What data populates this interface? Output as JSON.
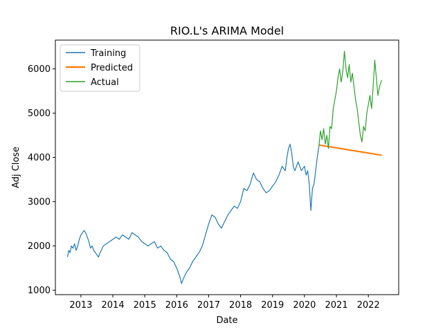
{
  "chart_data": {
    "type": "line",
    "title": "RIO.L's ARIMA Model",
    "xlabel": "Date",
    "ylabel": "Adj Close",
    "xlim": [
      2012.2,
      2022.95
    ],
    "ylim": [
      900,
      6650
    ],
    "xticks": [
      2013,
      2014,
      2015,
      2016,
      2017,
      2018,
      2019,
      2020,
      2021,
      2022
    ],
    "yticks": [
      1000,
      2000,
      3000,
      4000,
      5000,
      6000
    ],
    "grid": false,
    "legend": "top-left",
    "series": [
      {
        "name": "Training",
        "color": "#1f77b4",
        "x": [
          2012.58,
          2012.62,
          2012.66,
          2012.7,
          2012.75,
          2012.8,
          2012.85,
          2012.9,
          2012.95,
          2013.0,
          2013.05,
          2013.1,
          2013.15,
          2013.2,
          2013.25,
          2013.3,
          2013.35,
          2013.4,
          2013.45,
          2013.5,
          2013.55,
          2013.6,
          2013.7,
          2013.8,
          2013.9,
          2014.0,
          2014.1,
          2014.2,
          2014.3,
          2014.4,
          2014.5,
          2014.6,
          2014.7,
          2014.8,
          2014.9,
          2015.0,
          2015.1,
          2015.2,
          2015.3,
          2015.4,
          2015.5,
          2015.6,
          2015.7,
          2015.8,
          2015.9,
          2016.0,
          2016.05,
          2016.1,
          2016.15,
          2016.2,
          2016.3,
          2016.4,
          2016.5,
          2016.6,
          2016.7,
          2016.8,
          2016.9,
          2017.0,
          2017.1,
          2017.2,
          2017.3,
          2017.4,
          2017.5,
          2017.6,
          2017.7,
          2017.8,
          2017.9,
          2018.0,
          2018.1,
          2018.2,
          2018.3,
          2018.4,
          2018.5,
          2018.6,
          2018.7,
          2018.8,
          2018.9,
          2019.0,
          2019.1,
          2019.2,
          2019.3,
          2019.4,
          2019.45,
          2019.5,
          2019.55,
          2019.6,
          2019.65,
          2019.7,
          2019.8,
          2019.9,
          2020.0,
          2020.05,
          2020.1,
          2020.15,
          2020.2,
          2020.25,
          2020.3,
          2020.35,
          2020.4,
          2020.45
        ],
        "values": [
          1750,
          1900,
          1850,
          2000,
          1950,
          2050,
          1900,
          2000,
          2150,
          2250,
          2300,
          2350,
          2300,
          2200,
          2100,
          1950,
          2000,
          1900,
          1850,
          1800,
          1750,
          1850,
          2000,
          2050,
          2100,
          2150,
          2200,
          2150,
          2250,
          2200,
          2150,
          2300,
          2250,
          2200,
          2100,
          2050,
          2000,
          2050,
          2100,
          1950,
          2000,
          1900,
          1850,
          1700,
          1650,
          1500,
          1400,
          1300,
          1150,
          1250,
          1400,
          1500,
          1650,
          1750,
          1850,
          2000,
          2250,
          2500,
          2700,
          2650,
          2500,
          2400,
          2550,
          2700,
          2800,
          2900,
          2850,
          3000,
          3300,
          3250,
          3400,
          3650,
          3500,
          3450,
          3300,
          3200,
          3250,
          3350,
          3450,
          3600,
          3800,
          3700,
          4000,
          4200,
          4300,
          4100,
          3800,
          3700,
          3900,
          3700,
          3800,
          3600,
          3700,
          3400,
          2800,
          3300,
          3400,
          3700,
          4000,
          4250
        ]
      },
      {
        "name": "Predicted",
        "color": "#ff7f0e",
        "x": [
          2020.45,
          2022.42
        ],
        "values": [
          4280,
          4050
        ]
      },
      {
        "name": "Actual",
        "color": "#2ca02c",
        "x": [
          2020.45,
          2020.5,
          2020.55,
          2020.6,
          2020.65,
          2020.7,
          2020.75,
          2020.8,
          2020.85,
          2020.9,
          2020.95,
          2021.0,
          2021.05,
          2021.1,
          2021.15,
          2021.2,
          2021.25,
          2021.3,
          2021.35,
          2021.4,
          2021.45,
          2021.5,
          2021.55,
          2021.6,
          2021.65,
          2021.7,
          2021.75,
          2021.8,
          2021.85,
          2021.9,
          2021.95,
          2022.0,
          2022.05,
          2022.1,
          2022.15,
          2022.2,
          2022.25,
          2022.3,
          2022.35,
          2022.42
        ],
        "values": [
          4250,
          4600,
          4400,
          4650,
          4300,
          4500,
          4200,
          4700,
          4650,
          5100,
          5300,
          5500,
          5800,
          6000,
          5700,
          5950,
          6400,
          6000,
          5800,
          6100,
          5700,
          5900,
          5600,
          5300,
          5100,
          4800,
          4500,
          4350,
          4700,
          4600,
          5000,
          5200,
          5400,
          5100,
          5600,
          6200,
          5800,
          5400,
          5600,
          5750
        ]
      }
    ]
  }
}
